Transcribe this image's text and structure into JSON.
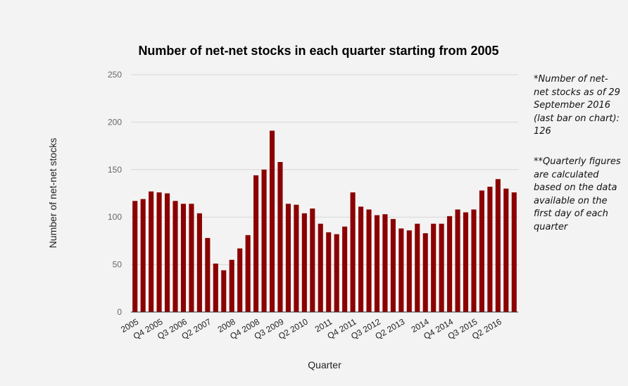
{
  "notes": [
    "*Number of net-net stocks as of 29 September 2016 (last bar on chart): 126",
    "**Quarterly figures are calculated based on the data available on the first day of each quarter"
  ],
  "colors": {
    "bar": "#8b0000",
    "grid": "#d6d6d6",
    "axis": "#333333"
  },
  "chart_data": {
    "type": "bar",
    "title": "Number of net-net stocks in each quarter starting from 2005",
    "xlabel": "Quarter",
    "ylabel": "Number of net-net stocks",
    "ylim": [
      0,
      250
    ],
    "yticks": [
      0,
      50,
      100,
      150,
      200,
      250
    ],
    "grid": true,
    "legend": "none",
    "tick_labels": [
      {
        "label": "2005",
        "index": 0
      },
      {
        "label": "Q4 2005",
        "index": 3
      },
      {
        "label": "Q3 2006",
        "index": 6
      },
      {
        "label": "Q2 2007",
        "index": 9
      },
      {
        "label": "2008",
        "index": 12
      },
      {
        "label": "Q4 2008",
        "index": 15
      },
      {
        "label": "Q3 2009",
        "index": 18
      },
      {
        "label": "Q2 2010",
        "index": 21
      },
      {
        "label": "2011",
        "index": 24
      },
      {
        "label": "Q4 2011",
        "index": 27
      },
      {
        "label": "Q3 2012",
        "index": 30
      },
      {
        "label": "Q2 2013",
        "index": 33
      },
      {
        "label": "2014",
        "index": 36
      },
      {
        "label": "Q4 2014",
        "index": 39
      },
      {
        "label": "Q3 2015",
        "index": 42
      },
      {
        "label": "Q2 2016",
        "index": 45
      }
    ],
    "categories": [
      "Q1 2005",
      "Q2 2005",
      "Q3 2005",
      "Q4 2005",
      "Q1 2006",
      "Q2 2006",
      "Q3 2006",
      "Q4 2006",
      "Q1 2007",
      "Q2 2007",
      "Q3 2007",
      "Q4 2007",
      "Q1 2008",
      "Q2 2008",
      "Q3 2008",
      "Q4 2008",
      "Q1 2009",
      "Q2 2009",
      "Q3 2009",
      "Q4 2009",
      "Q1 2010",
      "Q2 2010",
      "Q3 2010",
      "Q4 2010",
      "Q1 2011",
      "Q2 2011",
      "Q3 2011",
      "Q4 2011",
      "Q1 2012",
      "Q2 2012",
      "Q3 2012",
      "Q4 2012",
      "Q1 2013",
      "Q2 2013",
      "Q3 2013",
      "Q4 2013",
      "Q1 2014",
      "Q2 2014",
      "Q3 2014",
      "Q4 2014",
      "Q1 2015",
      "Q2 2015",
      "Q3 2015",
      "Q4 2015",
      "Q1 2016",
      "Q2 2016",
      "Q3 2016",
      "Q4 2016"
    ],
    "values": [
      117,
      119,
      127,
      126,
      125,
      117,
      114,
      114,
      104,
      78,
      51,
      44,
      55,
      67,
      81,
      144,
      150,
      191,
      158,
      114,
      113,
      104,
      109,
      93,
      84,
      82,
      90,
      126,
      111,
      108,
      102,
      103,
      98,
      88,
      86,
      93,
      83,
      93,
      93,
      101,
      108,
      105,
      108,
      128,
      132,
      140,
      130,
      126
    ]
  }
}
